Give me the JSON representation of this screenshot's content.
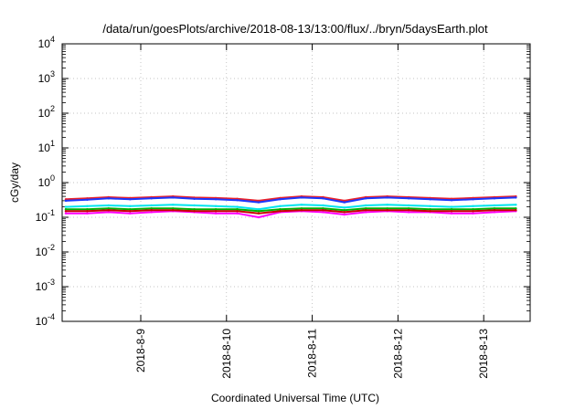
{
  "chart_data": {
    "type": "line",
    "title": "/data/run/goesPlots/archive/2018-08-13/13:00/flux/../bryn/5daysEarth.plot",
    "xlabel": "Coordinated Universal Time (UTC)",
    "ylabel": "cGy/day",
    "yscale": "log",
    "ylim": [
      0.0001,
      10000
    ],
    "y_ticks": [
      {
        "base": "10",
        "exp": "-4"
      },
      {
        "base": "10",
        "exp": "-3"
      },
      {
        "base": "10",
        "exp": "-2"
      },
      {
        "base": "10",
        "exp": "-1"
      },
      {
        "base": "10",
        "exp": "0"
      },
      {
        "base": "10",
        "exp": "1"
      },
      {
        "base": "10",
        "exp": "2"
      },
      {
        "base": "10",
        "exp": "3"
      },
      {
        "base": "10",
        "exp": "4"
      }
    ],
    "xlim": [
      "2018-08-08 02:00",
      "2018-08-13 13:00"
    ],
    "x_ticks": [
      "2018-8-9",
      "2018-8-10",
      "2018-8-11",
      "2018-8-12",
      "2018-8-13"
    ],
    "grid": true,
    "legend": "none",
    "x": [
      "2018-08-08 03:00",
      "2018-08-08 09:00",
      "2018-08-08 15:00",
      "2018-08-08 21:00",
      "2018-08-09 03:00",
      "2018-08-09 09:00",
      "2018-08-09 15:00",
      "2018-08-09 21:00",
      "2018-08-10 03:00",
      "2018-08-10 09:00",
      "2018-08-10 15:00",
      "2018-08-10 21:00",
      "2018-08-11 03:00",
      "2018-08-11 09:00",
      "2018-08-11 15:00",
      "2018-08-11 21:00",
      "2018-08-12 03:00",
      "2018-08-12 09:00",
      "2018-08-12 15:00",
      "2018-08-12 21:00",
      "2018-08-13 03:00",
      "2018-08-13 09:00"
    ],
    "series": [
      {
        "color": "#e8202a",
        "values": [
          0.33,
          0.35,
          0.38,
          0.36,
          0.38,
          0.4,
          0.37,
          0.36,
          0.34,
          0.3,
          0.36,
          0.4,
          0.38,
          0.3,
          0.38,
          0.4,
          0.38,
          0.36,
          0.34,
          0.36,
          0.38,
          0.4
        ]
      },
      {
        "color": "#1b36ff",
        "values": [
          0.3,
          0.32,
          0.35,
          0.33,
          0.35,
          0.37,
          0.34,
          0.33,
          0.31,
          0.27,
          0.33,
          0.37,
          0.35,
          0.27,
          0.35,
          0.37,
          0.35,
          0.33,
          0.31,
          0.33,
          0.35,
          0.37
        ]
      },
      {
        "color": "#ff00ff",
        "values": [
          0.13,
          0.13,
          0.14,
          0.13,
          0.14,
          0.15,
          0.14,
          0.13,
          0.13,
          0.1,
          0.14,
          0.15,
          0.14,
          0.12,
          0.14,
          0.15,
          0.14,
          0.14,
          0.13,
          0.13,
          0.14,
          0.15
        ]
      },
      {
        "color": "#00e5ee",
        "values": [
          0.2,
          0.21,
          0.22,
          0.21,
          0.22,
          0.23,
          0.22,
          0.21,
          0.2,
          0.17,
          0.21,
          0.23,
          0.22,
          0.19,
          0.22,
          0.23,
          0.22,
          0.21,
          0.2,
          0.21,
          0.22,
          0.23
        ]
      },
      {
        "color": "#00b000",
        "values": [
          0.17,
          0.17,
          0.18,
          0.17,
          0.18,
          0.18,
          0.17,
          0.17,
          0.17,
          0.15,
          0.17,
          0.18,
          0.18,
          0.16,
          0.18,
          0.18,
          0.18,
          0.17,
          0.17,
          0.17,
          0.18,
          0.18
        ]
      },
      {
        "color": "#c80000",
        "values": [
          0.15,
          0.15,
          0.16,
          0.15,
          0.16,
          0.16,
          0.15,
          0.15,
          0.15,
          0.13,
          0.15,
          0.16,
          0.16,
          0.14,
          0.16,
          0.16,
          0.16,
          0.15,
          0.15,
          0.15,
          0.16,
          0.16
        ]
      }
    ]
  }
}
